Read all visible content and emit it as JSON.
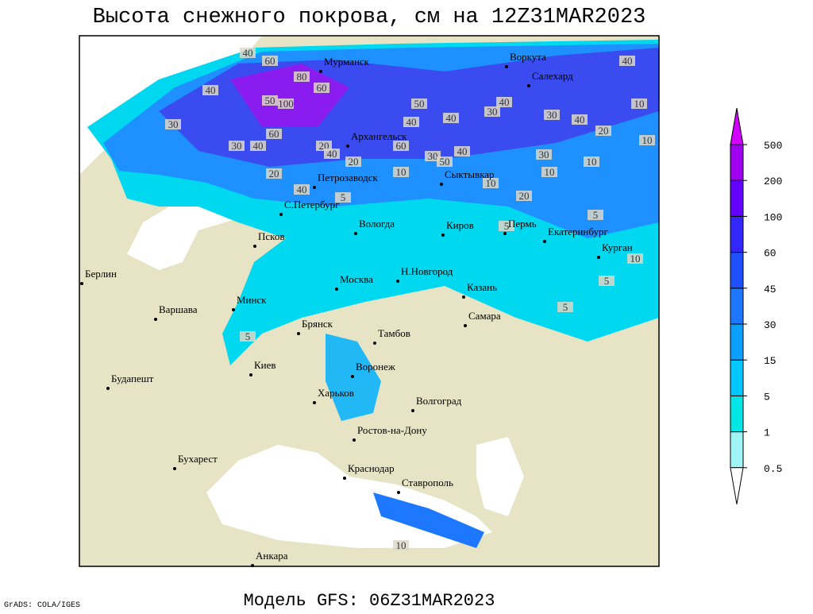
{
  "header": {
    "title": "Высота снежного покрова, см на 12Z31MAR2023"
  },
  "footer": {
    "model": "Модель GFS: 06Z31MAR2023",
    "credit": "GrADS: COLA/IGES"
  },
  "cities": [
    "Мурманск",
    "Воркута",
    "Салехард",
    "Архангельск",
    "Сыктывкар",
    "Петрозаводск",
    "С.Петербург",
    "Вологда",
    "Киров",
    "Пермь",
    "Екатеринбург",
    "Курган",
    "Псков",
    "Берлин",
    "Москва",
    "Н.Новгород",
    "Казань",
    "Минск",
    "Варшава",
    "Самара",
    "Брянск",
    "Тамбов",
    "Киев",
    "Воронеж",
    "Будапешт",
    "Харьков",
    "Волгоград",
    "Ростов-на-Дону",
    "Бухарест",
    "Краснодар",
    "Ставрополь",
    "Анкара"
  ],
  "contour_labels": [
    40,
    60,
    80,
    100,
    40,
    60,
    50,
    30,
    30,
    40,
    60,
    20,
    40,
    20,
    40,
    30,
    40,
    40,
    60,
    50,
    40,
    20,
    50,
    40,
    30,
    40,
    30,
    10,
    10,
    40,
    20,
    30,
    10,
    20,
    10,
    5,
    5,
    5,
    5,
    5,
    10,
    5,
    10,
    10,
    10
  ],
  "colorbar": {
    "levels": [
      0.5,
      1,
      5,
      15,
      30,
      45,
      60,
      100,
      200,
      500
    ],
    "colors": [
      "#ffffff",
      "#9ff5f5",
      "#00e6e6",
      "#00c8ff",
      "#0aa0ff",
      "#1e78ff",
      "#1e50ff",
      "#3228ff",
      "#6400ff",
      "#a000f0",
      "#d200ff"
    ]
  }
}
